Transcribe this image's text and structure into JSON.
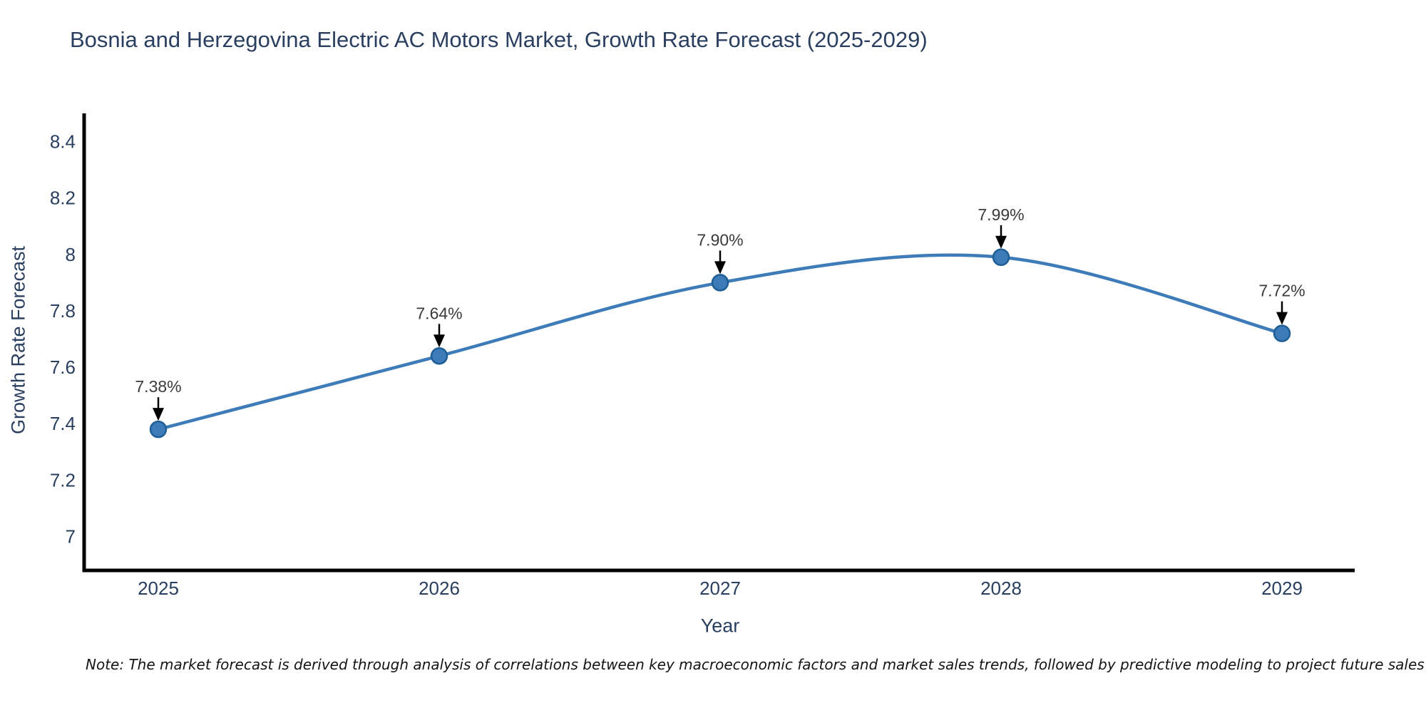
{
  "chart_data": {
    "type": "line",
    "title": "Bosnia and Herzegovina Electric AC Motors Market, Growth Rate Forecast (2025-2029)",
    "xlabel": "Year",
    "ylabel": "Growth Rate Forecast",
    "note": "Note: The market forecast is derived through analysis of correlations between key macroeconomic factors and market sales trends, followed by predictive modeling to project future sales",
    "categories": [
      "2025",
      "2026",
      "2027",
      "2028",
      "2029"
    ],
    "series": [
      {
        "name": "Growth Rate Forecast",
        "values": [
          7.38,
          7.64,
          7.9,
          7.99,
          7.72
        ],
        "data_labels": [
          "7.38%",
          "7.64%",
          "7.90%",
          "7.99%",
          "7.72%"
        ]
      }
    ],
    "line_shape": "spline",
    "marker": "circle",
    "grid": false,
    "legend_position": "none",
    "ylim": [
      6.88,
      8.5
    ],
    "yticks": {
      "values": [
        7,
        7.2,
        7.4,
        7.6,
        7.8,
        8,
        8.2,
        8.4
      ],
      "labels": [
        "7",
        "7.2",
        "7.4",
        "7.6",
        "7.8",
        "8",
        "8.2",
        "8.4"
      ]
    },
    "colors": {
      "line": "#3e7cb9",
      "marker_fill": "#3c7bb7",
      "marker_edge": "#1f5f96",
      "axis": "#000000",
      "tick_text": "#2a3f5f",
      "title_text": "#2a3f5f",
      "annotation_text": "#3a3a3a",
      "annotation_arrow": "#000000",
      "background": "#ffffff"
    }
  }
}
